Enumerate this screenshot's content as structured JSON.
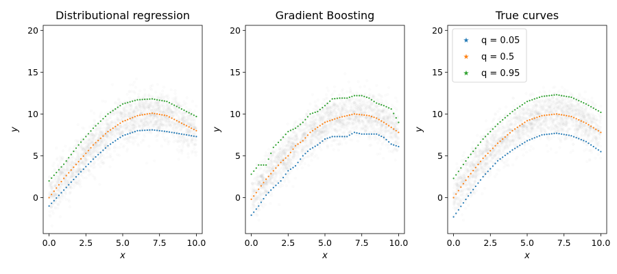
{
  "chart_data": [
    {
      "type": "scatter",
      "title": "Distributional regression",
      "xlabel": "x",
      "ylabel": "y",
      "xlim": [
        -0.4,
        10.4
      ],
      "ylim": [
        -4.3,
        20.6
      ],
      "xticks": [
        "0.0",
        "2.5",
        "5.0",
        "7.5",
        "10.0"
      ],
      "yticks": [
        "0",
        "5",
        "10",
        "15",
        "20"
      ],
      "background": "gray scatter cloud of observations",
      "series": [
        {
          "name": "q = 0.05",
          "color": "#1f77b4",
          "x": [
            0,
            1,
            2,
            3,
            4,
            5,
            6,
            7,
            8,
            9,
            10
          ],
          "y": [
            -1.0,
            0.9,
            2.8,
            4.6,
            6.2,
            7.4,
            8.0,
            8.1,
            7.9,
            7.6,
            7.3
          ]
        },
        {
          "name": "q = 0.5",
          "color": "#ff7f0e",
          "x": [
            0,
            1,
            2,
            3,
            4,
            5,
            6,
            7,
            8,
            9,
            10
          ],
          "y": [
            0.0,
            2.3,
            4.3,
            6.3,
            7.9,
            9.1,
            9.8,
            10.1,
            9.8,
            8.9,
            8.0
          ]
        },
        {
          "name": "q = 0.95",
          "color": "#2ca02c",
          "x": [
            0,
            1,
            2,
            3,
            4,
            5,
            6,
            7,
            8,
            9,
            10
          ],
          "y": [
            2.0,
            4.0,
            6.3,
            8.3,
            10.0,
            11.2,
            11.7,
            11.8,
            11.5,
            10.6,
            9.7
          ]
        }
      ]
    },
    {
      "type": "scatter",
      "title": "Gradient Boosting",
      "xlabel": "x",
      "ylabel": "y",
      "xlim": [
        -0.4,
        10.4
      ],
      "ylim": [
        -4.3,
        20.6
      ],
      "xticks": [
        "0.0",
        "2.5",
        "5.0",
        "7.5",
        "10.0"
      ],
      "yticks": [
        "0",
        "5",
        "10",
        "15",
        "20"
      ],
      "background": "gray scatter cloud of observations",
      "series": [
        {
          "name": "q = 0.05",
          "color": "#1f77b4",
          "x": [
            0,
            0.5,
            1,
            1.5,
            2,
            2.5,
            3,
            3.5,
            4,
            4.5,
            5,
            5.5,
            6,
            6.5,
            7,
            7.5,
            8,
            8.5,
            9,
            9.5,
            10
          ],
          "y": [
            -2.1,
            -1.0,
            0.3,
            1.2,
            2.0,
            3.2,
            3.8,
            5.0,
            5.8,
            6.3,
            7.0,
            7.3,
            7.3,
            7.3,
            7.8,
            7.6,
            7.6,
            7.6,
            7.2,
            6.4,
            6.1
          ]
        },
        {
          "name": "q = 0.5",
          "color": "#ff7f0e",
          "x": [
            0,
            0.5,
            1,
            1.5,
            2,
            2.5,
            3,
            3.5,
            4,
            4.5,
            5,
            5.5,
            6,
            6.5,
            7,
            7.5,
            8,
            8.5,
            9,
            9.5,
            10
          ],
          "y": [
            -0.2,
            1.0,
            2.2,
            3.2,
            4.2,
            5.0,
            6.2,
            6.8,
            7.8,
            8.4,
            9.0,
            9.3,
            9.6,
            9.8,
            10.0,
            9.9,
            9.8,
            9.5,
            9.0,
            8.4,
            7.8
          ]
        },
        {
          "name": "q = 0.95",
          "color": "#2ca02c",
          "x": [
            0,
            0.5,
            1,
            1.5,
            2,
            2.5,
            3,
            3.5,
            4,
            4.5,
            5,
            5.5,
            6,
            6.5,
            7,
            7.5,
            8,
            8.5,
            9,
            9.5,
            10
          ],
          "y": [
            2.8,
            3.9,
            3.9,
            6.0,
            6.9,
            7.9,
            8.3,
            9.0,
            10.0,
            10.3,
            11.0,
            11.8,
            11.9,
            11.9,
            12.2,
            12.2,
            11.9,
            11.3,
            11.0,
            10.6,
            9.0
          ]
        }
      ]
    },
    {
      "type": "scatter",
      "title": "True curves",
      "xlabel": "x",
      "ylabel": "y",
      "xlim": [
        -0.4,
        10.4
      ],
      "ylim": [
        -4.3,
        20.6
      ],
      "xticks": [
        "0.0",
        "2.5",
        "5.0",
        "7.5",
        "10.0"
      ],
      "yticks": [
        "0",
        "5",
        "10",
        "15",
        "20"
      ],
      "background": "gray scatter cloud of observations",
      "legend": {
        "placement": "top-left",
        "entries": [
          {
            "label": "q = 0.05",
            "color": "#1f77b4"
          },
          {
            "label": "q = 0.5",
            "color": "#ff7f0e"
          },
          {
            "label": "q = 0.95",
            "color": "#2ca02c"
          }
        ]
      },
      "series": [
        {
          "name": "q = 0.05",
          "color": "#1f77b4",
          "x": [
            0,
            1,
            2,
            3,
            4,
            5,
            6,
            7,
            8,
            9,
            10
          ],
          "y": [
            -2.3,
            0.2,
            2.5,
            4.4,
            5.7,
            6.8,
            7.5,
            7.7,
            7.4,
            6.7,
            5.5
          ]
        },
        {
          "name": "q = 0.5",
          "color": "#ff7f0e",
          "x": [
            0,
            1,
            2,
            3,
            4,
            5,
            6,
            7,
            8,
            9,
            10
          ],
          "y": [
            0.0,
            2.5,
            4.7,
            6.5,
            8.0,
            9.2,
            9.8,
            10.0,
            9.7,
            8.9,
            7.8
          ]
        },
        {
          "name": "q = 0.95",
          "color": "#2ca02c",
          "x": [
            0,
            1,
            2,
            3,
            4,
            5,
            6,
            7,
            8,
            9,
            10
          ],
          "y": [
            2.3,
            4.8,
            7.0,
            8.8,
            10.3,
            11.5,
            12.1,
            12.3,
            12.0,
            11.2,
            10.2
          ]
        }
      ]
    }
  ]
}
